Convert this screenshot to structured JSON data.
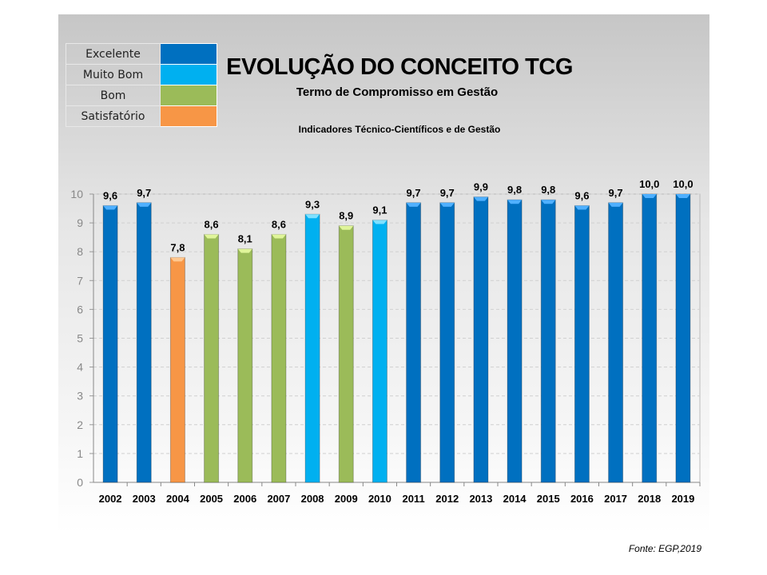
{
  "legend": [
    {
      "label": "Excelente",
      "color": "#0070C0"
    },
    {
      "label": "Muito Bom",
      "color": "#00B0F0"
    },
    {
      "label": "Bom",
      "color": "#9BBB59"
    },
    {
      "label": "Satisfatório",
      "color": "#F79646"
    }
  ],
  "header": {
    "title": "EVOLUÇÃO DO CONCEITO TCG",
    "subtitle": "Termo de Compromisso em Gestão",
    "subtitle2": "Indicadores Técnico-Científicos e de Gestão"
  },
  "source": "Fonte: EGP,2019",
  "chart_data": {
    "type": "bar",
    "title": "EVOLUÇÃO DO CONCEITO TCG",
    "categories": [
      "2002",
      "2003",
      "2004",
      "2005",
      "2006",
      "2007",
      "2008",
      "2009",
      "2010",
      "2011",
      "2012",
      "2013",
      "2014",
      "2015",
      "2016",
      "2017",
      "2018",
      "2019"
    ],
    "values": [
      9.6,
      9.7,
      7.8,
      8.6,
      8.1,
      8.6,
      9.3,
      8.9,
      9.1,
      9.7,
      9.7,
      9.9,
      9.8,
      9.8,
      9.6,
      9.7,
      10.0,
      10.0
    ],
    "data_labels": [
      "9,6",
      "9,7",
      "7,8",
      "8,6",
      "8,1",
      "8,6",
      "9,3",
      "8,9",
      "9,1",
      "9,7",
      "9,7",
      "9,9",
      "9,8",
      "9,8",
      "9,6",
      "9,7",
      "10,0",
      "10,0"
    ],
    "classes": [
      "Excelente",
      "Excelente",
      "Satisfatório",
      "Bom",
      "Bom",
      "Bom",
      "Muito Bom",
      "Bom",
      "Muito Bom",
      "Excelente",
      "Excelente",
      "Excelente",
      "Excelente",
      "Excelente",
      "Excelente",
      "Excelente",
      "Excelente",
      "Excelente"
    ],
    "yticks": [
      "0",
      "1",
      "2",
      "3",
      "4",
      "5",
      "6",
      "7",
      "8",
      "9",
      "10"
    ],
    "ylim": [
      0,
      10
    ],
    "grid": true,
    "legend_position": "top-left"
  }
}
